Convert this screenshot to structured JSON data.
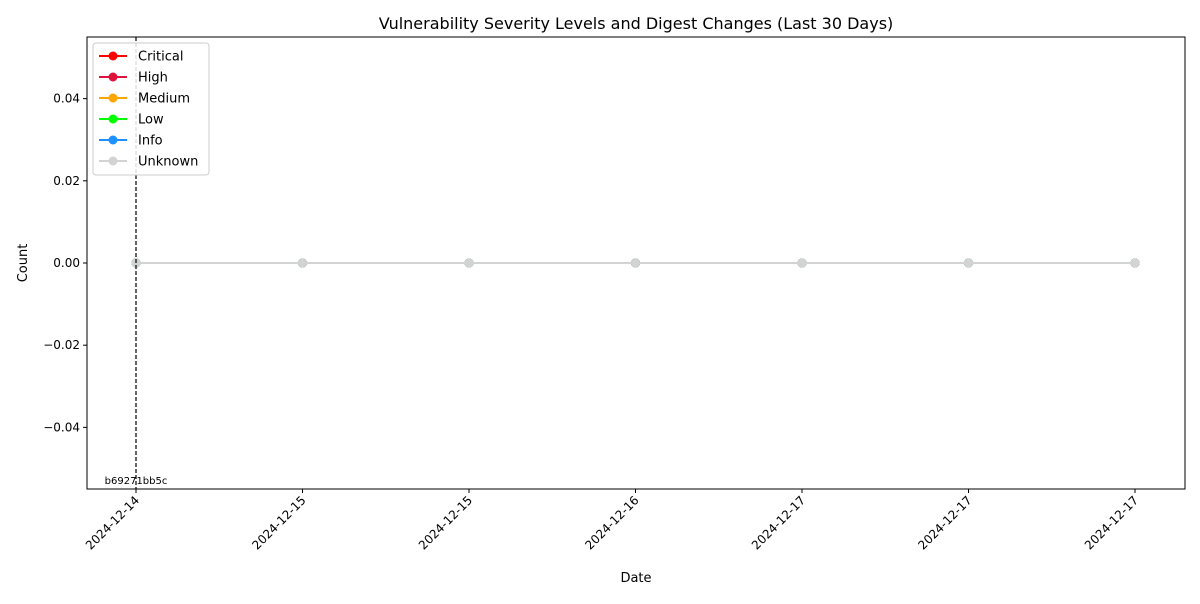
{
  "chart_data": {
    "type": "line",
    "title": "Vulnerability Severity Levels and Digest Changes (Last 30 Days)",
    "xlabel": "Date",
    "ylabel": "Count",
    "ylim": [
      -0.055,
      0.055
    ],
    "yticks": [
      "−0.04",
      "−0.02",
      "0.00",
      "0.02",
      "0.04"
    ],
    "ytick_values": [
      -0.04,
      -0.02,
      0.0,
      0.02,
      0.04
    ],
    "x": [
      "2024-12-14",
      "2024-12-15",
      "2024-12-15",
      "2024-12-16",
      "2024-12-17",
      "2024-12-17",
      "2024-12-17"
    ],
    "legend_position": "top-left",
    "grid": false,
    "series": [
      {
        "name": "Critical",
        "color": "#ff0000",
        "values": [
          0,
          0,
          0,
          0,
          0,
          0,
          0
        ]
      },
      {
        "name": "High",
        "color": "#dc143c",
        "values": [
          0,
          0,
          0,
          0,
          0,
          0,
          0
        ]
      },
      {
        "name": "Medium",
        "color": "#ffa500",
        "values": [
          0,
          0,
          0,
          0,
          0,
          0,
          0
        ]
      },
      {
        "name": "Low",
        "color": "#00ff00",
        "values": [
          0,
          0,
          0,
          0,
          0,
          0,
          0
        ]
      },
      {
        "name": "Info",
        "color": "#1e90ff",
        "values": [
          0,
          0,
          0,
          0,
          0,
          0,
          0
        ]
      },
      {
        "name": "Unknown",
        "color": "#d3d3d3",
        "values": [
          0,
          0,
          0,
          0,
          0,
          0,
          0
        ]
      }
    ],
    "digest_changes": [
      {
        "x_index": 0,
        "label": "b69271bb5c"
      }
    ]
  }
}
